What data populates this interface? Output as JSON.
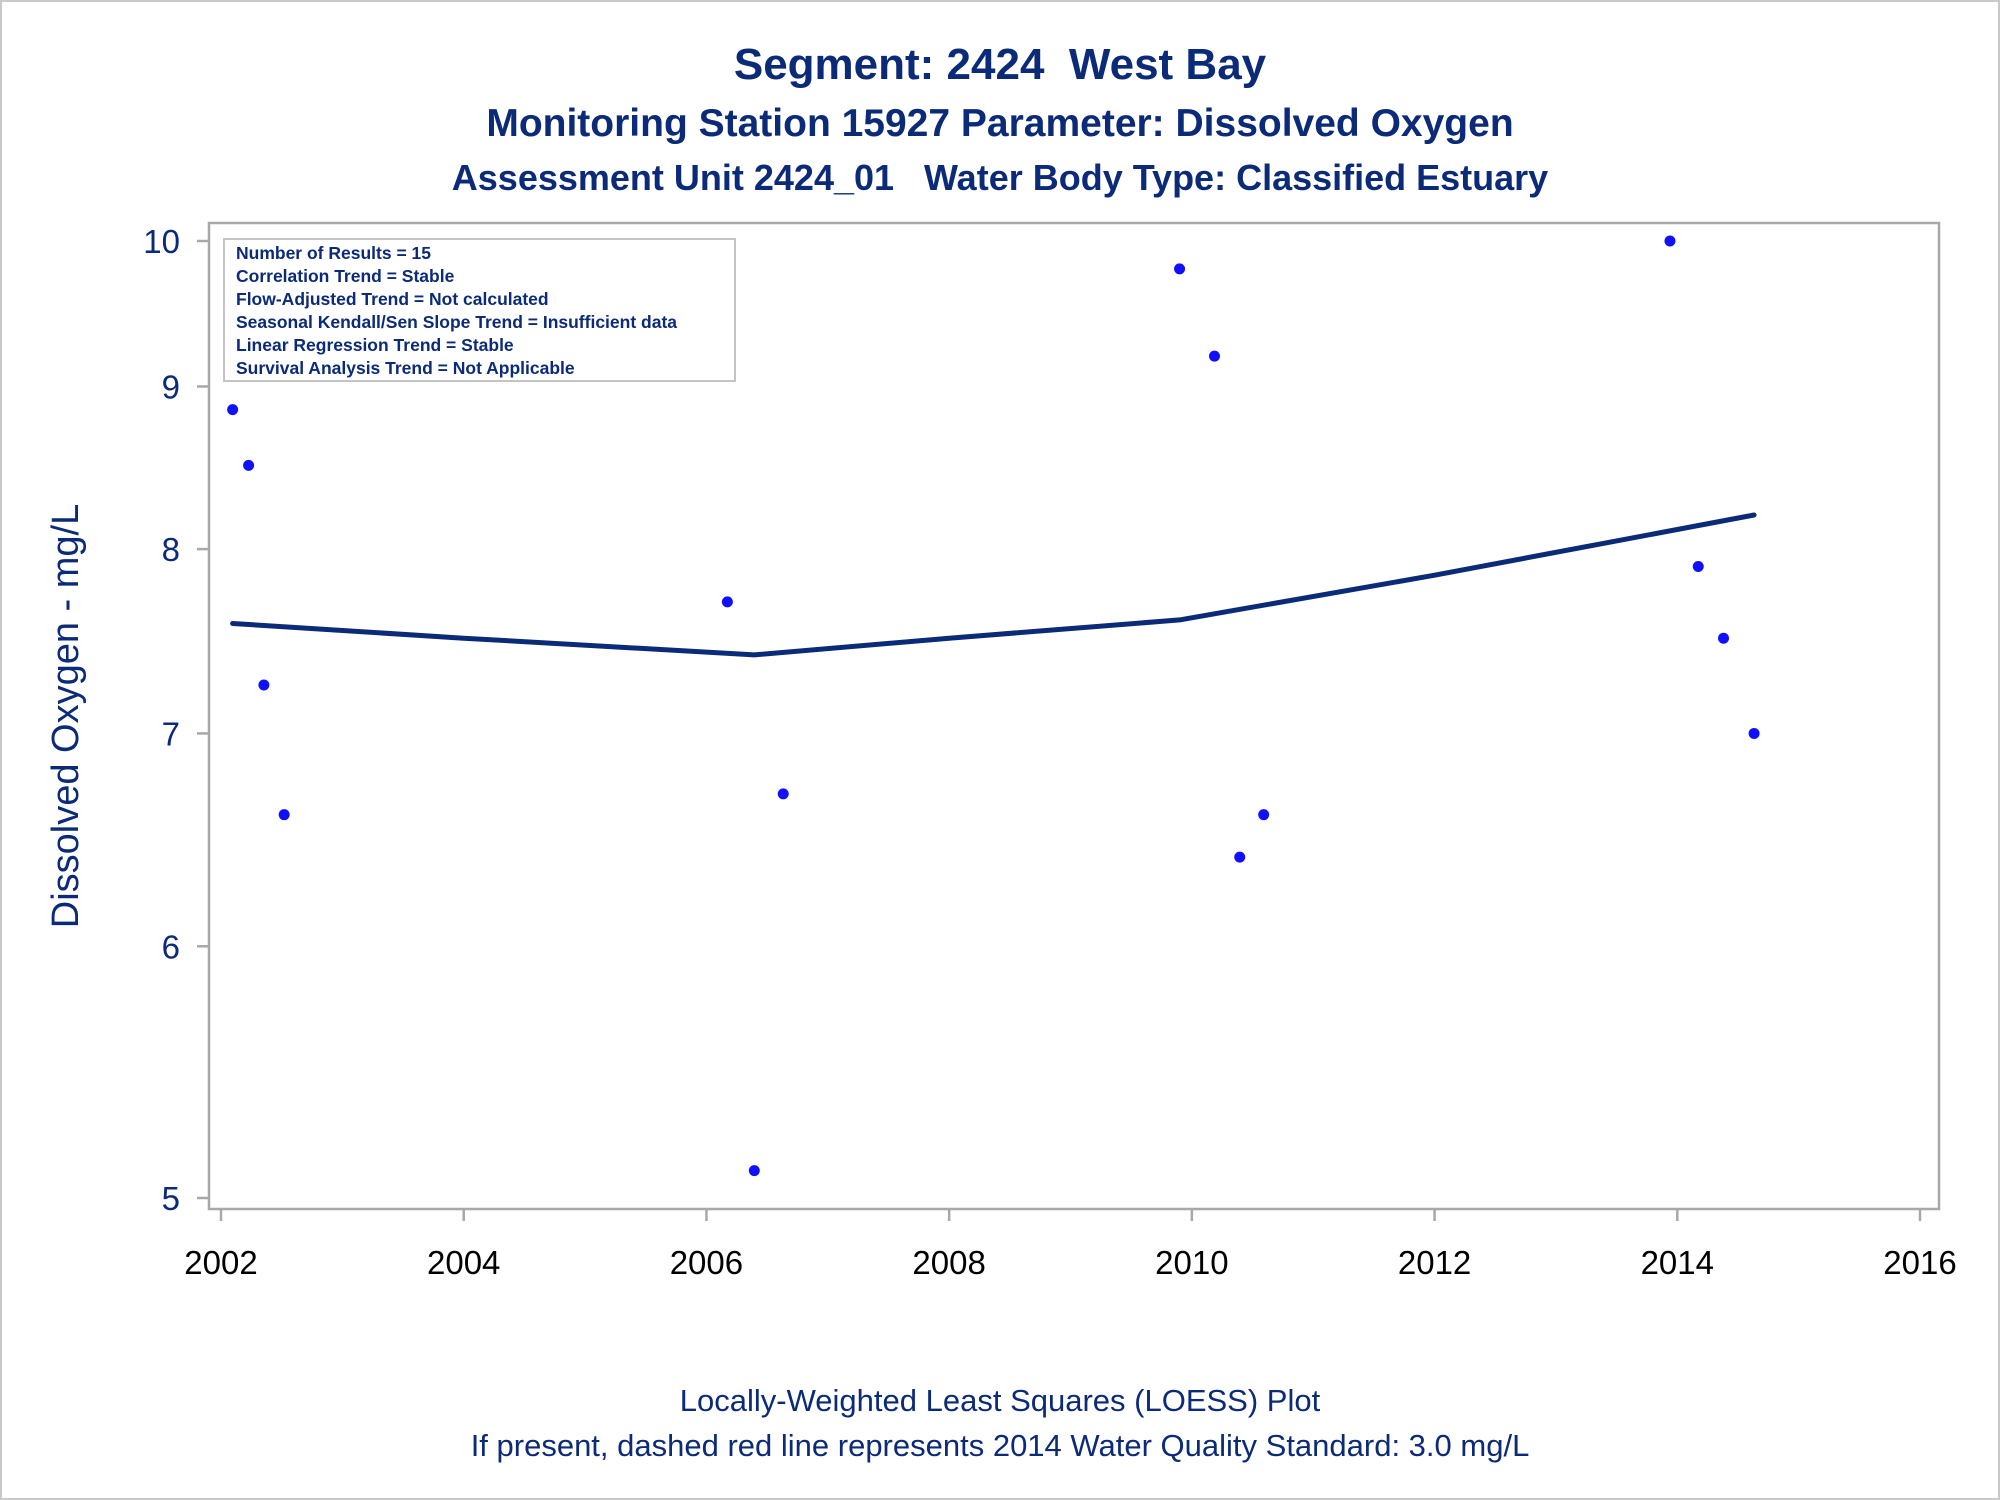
{
  "titles": {
    "line1": "Segment: 2424  West Bay",
    "line2": "Monitoring Station 15927 Parameter: Dissolved Oxygen",
    "line3": "Assessment Unit 2424_01   Water Body Type: Classified Estuary"
  },
  "stats_box": {
    "lines": [
      "Number of Results = 15",
      "Correlation Trend = Stable",
      "Flow-Adjusted Trend = Not calculated",
      "Seasonal Kendall/Sen Slope Trend = Insufficient data",
      "Linear Regression Trend = Stable",
      "Survival Analysis Trend = Not Applicable"
    ]
  },
  "footnotes": {
    "line1": "Locally-Weighted Least Squares (LOESS) Plot",
    "line2": "If present, dashed red line represents 2014 Water Quality Standard: 3.0 mg/L"
  },
  "colors": {
    "text": "#0b2a78",
    "points": "#1010ff",
    "loess_line": "#0b2a78",
    "axis_frame": "#a8a8a8"
  },
  "chart_data": {
    "type": "scatter",
    "xlabel": "",
    "ylabel": "Dissolved Oxygen - mg/L",
    "yscale": "log",
    "xlim": [
      2002,
      2016
    ],
    "ylim": [
      5,
      10
    ],
    "x_ticks": [
      2002,
      2004,
      2006,
      2008,
      2010,
      2012,
      2014,
      2016
    ],
    "y_ticks": [
      5,
      6,
      7,
      8,
      9,
      10
    ],
    "grid": false,
    "series": [
      {
        "kind": "points",
        "x": [
          "2002-02-05",
          "2002-03-25",
          "2002-05-10",
          "2002-07-10",
          "2006-03-05",
          "2006-05-25",
          "2006-08-20",
          "2009-11-25",
          "2010-03-10",
          "2010-05-25",
          "2010-08-05",
          "2013-12-10",
          "2014-03-05",
          "2014-05-20",
          "2014-08-20"
        ],
        "y": [
          8.85,
          8.5,
          7.25,
          6.6,
          7.7,
          5.1,
          6.7,
          9.8,
          9.2,
          6.4,
          6.6,
          10.0,
          7.9,
          7.5,
          7.0
        ]
      },
      {
        "kind": "loess",
        "x": [
          "2002-02-05",
          "2004-01-01",
          "2006-05-25",
          "2008-01-01",
          "2009-11-25",
          "2012-01-01",
          "2014-08-20"
        ],
        "y": [
          7.58,
          7.5,
          7.41,
          7.5,
          7.6,
          7.85,
          8.2
        ]
      }
    ]
  }
}
